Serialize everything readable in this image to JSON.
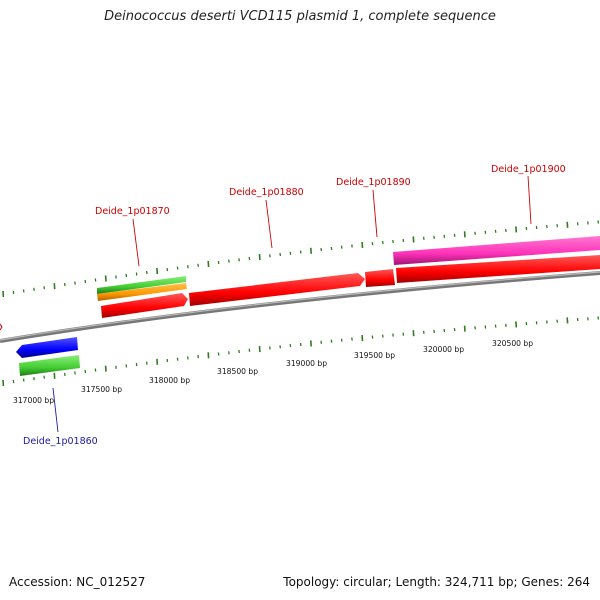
{
  "title": "Deinococcus deserti VCD115 plasmid 1, complete sequence",
  "footer": {
    "accession": "Accession: NC_012527",
    "summary": "Topology: circular; Length: 324,711 bp; Genes: 264"
  },
  "colors": {
    "backbone": "#888888",
    "tick": "#2e7d1e",
    "label_red": "#cc0000",
    "label_blue": "#1a1aa6",
    "feature_red": "#ff0000",
    "feature_magenta": "#ff33bb",
    "feature_green": "#44cc33",
    "feature_orange": "#ff9900",
    "feature_blue": "#0000ff"
  },
  "tick_labels": [
    "317000 bp",
    "317500 bp",
    "318000 bp",
    "318500 bp",
    "319000 bp",
    "319500 bp",
    "320000 bp",
    "320500 bp"
  ],
  "gene_labels": [
    {
      "name": "Deide_1p01860",
      "strand": "reverse"
    },
    {
      "name": "Deide_1p01870",
      "strand": "forward"
    },
    {
      "name": "Deide_1p01880",
      "strand": "forward"
    },
    {
      "name": "Deide_1p01890",
      "strand": "forward"
    },
    {
      "name": "Deide_1p01900",
      "strand": "forward"
    }
  ]
}
